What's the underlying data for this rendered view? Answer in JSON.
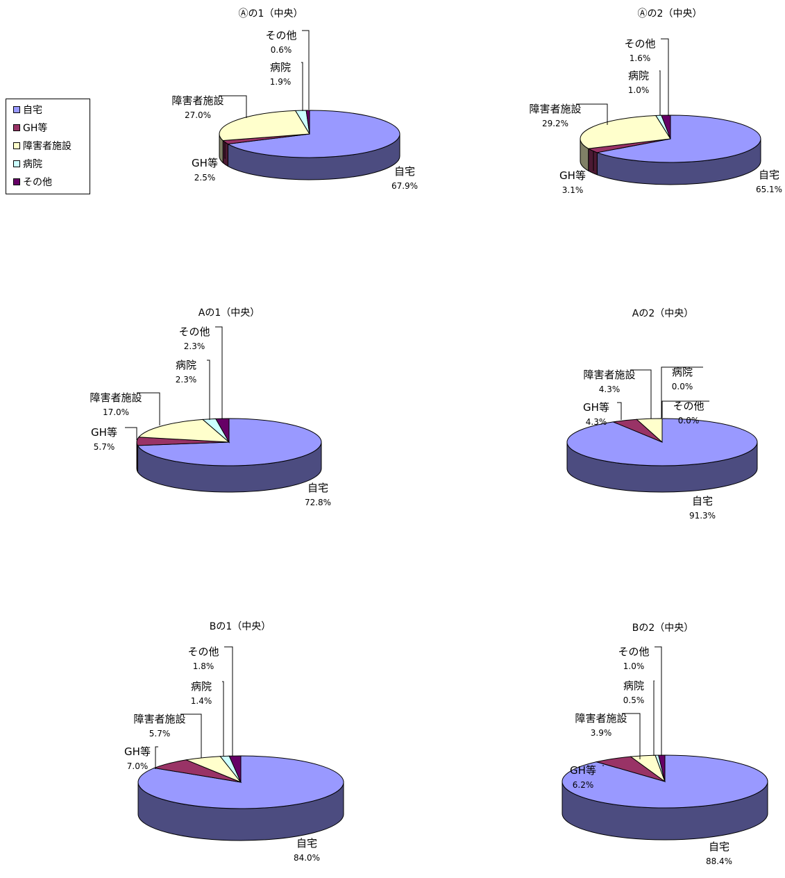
{
  "legend": {
    "items": [
      {
        "label": "自宅",
        "color": "#9999ff"
      },
      {
        "label": "GH等",
        "color": "#993366"
      },
      {
        "label": "障害者施設",
        "color": "#ffffcc"
      },
      {
        "label": "病院",
        "color": "#ccffff"
      },
      {
        "label": "その他",
        "color": "#660066"
      }
    ]
  },
  "chart_data": [
    {
      "type": "pie",
      "title": "Ⓐの1（中央）",
      "categories": [
        "自宅",
        "GH等",
        "障害者施設",
        "病院",
        "その他"
      ],
      "values": [
        67.9,
        2.5,
        27.0,
        1.9,
        0.6
      ],
      "value_labels": [
        "67.9%",
        "2.5%",
        "27.0%",
        "1.9%",
        "0.6%"
      ]
    },
    {
      "type": "pie",
      "title": "Ⓐの2（中央）",
      "categories": [
        "自宅",
        "GH等",
        "障害者施設",
        "病院",
        "その他"
      ],
      "values": [
        65.1,
        3.1,
        29.2,
        1.0,
        1.6
      ],
      "value_labels": [
        "65.1%",
        "3.1%",
        "29.2%",
        "1.0%",
        "1.6%"
      ]
    },
    {
      "type": "pie",
      "title": "Aの1（中央）",
      "categories": [
        "自宅",
        "GH等",
        "障害者施設",
        "病院",
        "その他"
      ],
      "values": [
        72.8,
        5.7,
        17.0,
        2.3,
        2.3
      ],
      "value_labels": [
        "72.8%",
        "5.7%",
        "17.0%",
        "2.3%",
        "2.3%"
      ]
    },
    {
      "type": "pie",
      "title": "Aの2（中央）",
      "categories": [
        "自宅",
        "GH等",
        "障害者施設",
        "病院",
        "その他"
      ],
      "values": [
        91.3,
        4.3,
        4.3,
        0.0,
        0.0
      ],
      "value_labels": [
        "91.3%",
        "4.3%",
        "4.3%",
        "0.0%",
        "0.0%"
      ]
    },
    {
      "type": "pie",
      "title": "Bの1（中央）",
      "categories": [
        "自宅",
        "GH等",
        "障害者施設",
        "病院",
        "その他"
      ],
      "values": [
        84.0,
        7.0,
        5.7,
        1.4,
        1.8
      ],
      "value_labels": [
        "84.0%",
        "7.0%",
        "5.7%",
        "1.4%",
        "1.8%"
      ]
    },
    {
      "type": "pie",
      "title": "Bの2（中央）",
      "categories": [
        "自宅",
        "GH等",
        "障害者施設",
        "病院",
        "その他"
      ],
      "values": [
        88.4,
        6.2,
        3.9,
        0.5,
        1.0
      ],
      "value_labels": [
        "88.4%",
        "6.2%",
        "3.9%",
        "0.5%",
        "1.0%"
      ]
    }
  ]
}
